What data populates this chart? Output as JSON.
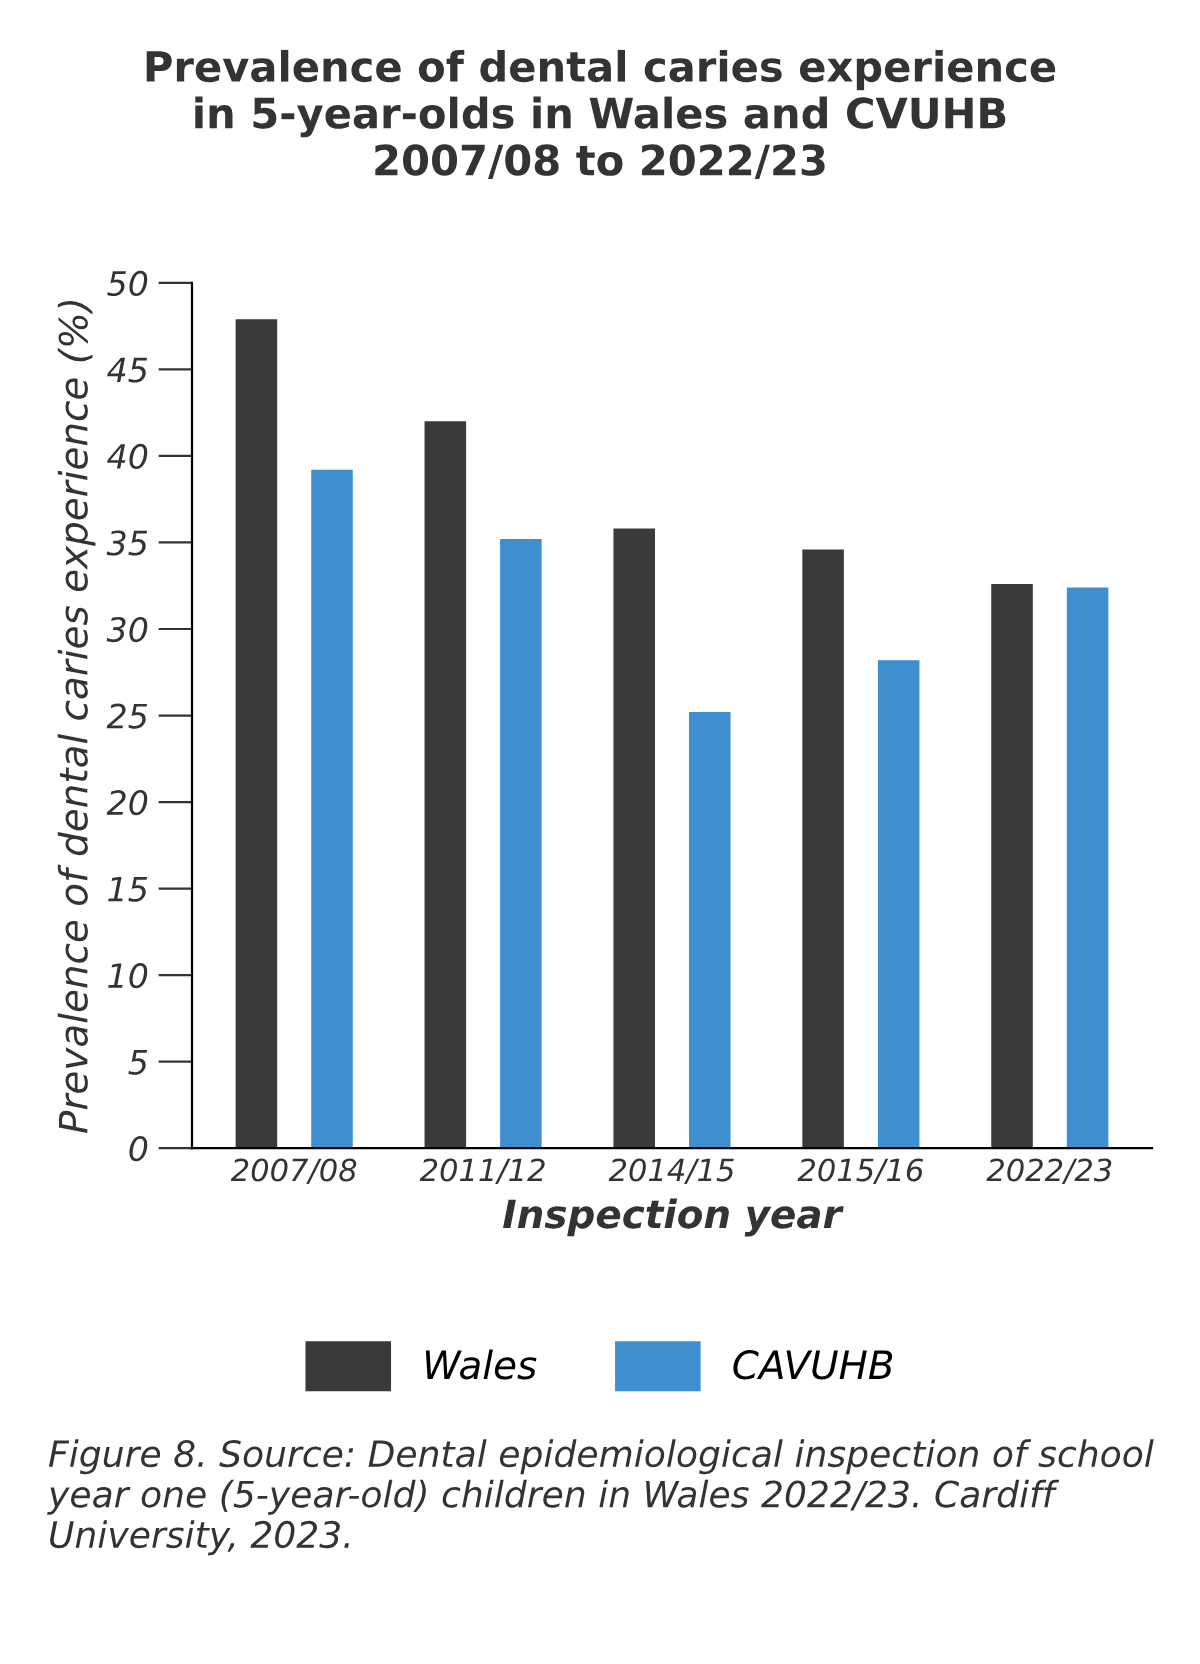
{
  "chart_data": {
    "type": "bar",
    "title": "Prevalence of dental caries experience\nin 5-year-olds in Wales and CVUHB\n2007/08 to 2022/23",
    "categories": [
      "2007/08",
      "2011/12",
      "2014/15",
      "2015/16",
      "2022/23"
    ],
    "series": [
      {
        "name": "Wales",
        "color": "#3a3a3a",
        "values": [
          47.9,
          42.0,
          35.8,
          34.6,
          32.6
        ]
      },
      {
        "name": "CAVUHB",
        "color": "#3d8fd0",
        "values": [
          39.2,
          35.2,
          25.2,
          28.2,
          32.4
        ]
      }
    ],
    "xlabel": "Inspection year",
    "ylabel": "Prevalence of dental caries experience (%)",
    "ylim": [
      0,
      50
    ],
    "yticks": [
      0,
      5,
      10,
      15,
      20,
      25,
      30,
      35,
      40,
      45,
      50
    ],
    "grid": false,
    "legend": "bottom",
    "annotations": [
      "Figure 8. Source: Dental epidemiological inspection of school year one (5-year-old) children in Wales 2022/23. Cardiff University, 2023."
    ]
  }
}
